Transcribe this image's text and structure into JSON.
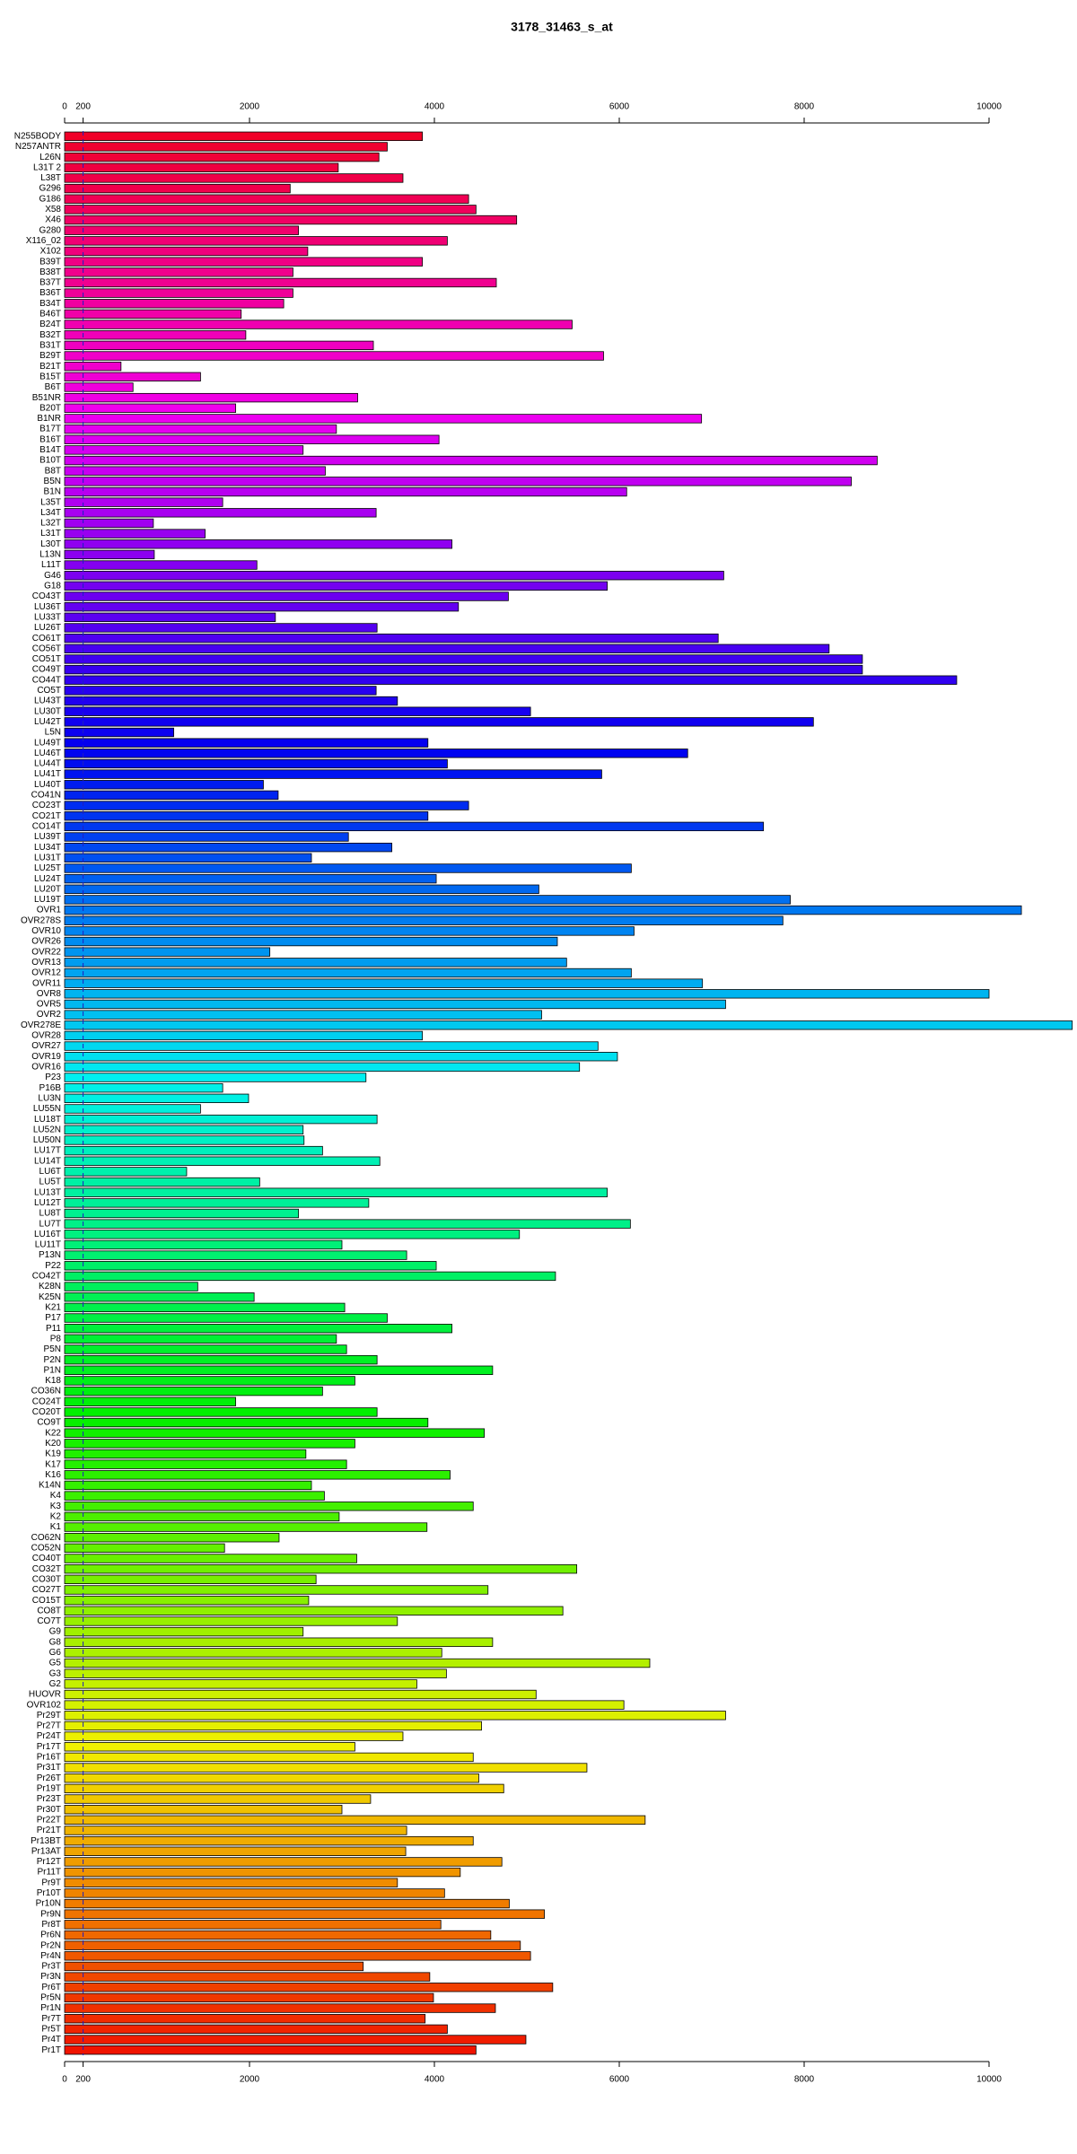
{
  "chart_data": {
    "type": "barh",
    "title": "3178_31463_s_at",
    "categories": [
      "N255BODY",
      "N257ANTR",
      "L26N",
      "L31T 2",
      "L38T",
      "G296",
      "G186",
      "X58",
      "X46",
      "G280",
      "X116_02",
      "X102",
      "B39T",
      "B38T",
      "B37T",
      "B36T",
      "B34T",
      "B46T",
      "B24T",
      "B32T",
      "B31T",
      "B29T",
      "B21T",
      "B15T",
      "B6T",
      "B51NR",
      "B20T",
      "B1NR",
      "B17T",
      "B16T",
      "B14T",
      "B10T",
      "B8T",
      "B5N",
      "B1N",
      "L35T",
      "L34T",
      "L32T",
      "L31T",
      "L30T",
      "L13N",
      "L11T",
      "G46",
      "G18",
      "CO43T",
      "LU36T",
      "LU33T",
      "LU26T",
      "CO61T",
      "CO56T",
      "CO51T",
      "CO49T",
      "CO44T",
      "CO5T",
      "LU43T",
      "LU30T",
      "LU42T",
      "L5N",
      "LU49T",
      "LU46T",
      "LU44T",
      "LU41T",
      "LU40T",
      "CO41N",
      "CO23T",
      "CO21T",
      "CO14T",
      "LU39T",
      "LU34T",
      "LU31T",
      "LU25T",
      "LU24T",
      "LU20T",
      "LU19T",
      "OVR1",
      "OVR278S",
      "OVR10",
      "OVR26",
      "OVR22",
      "OVR13",
      "OVR12",
      "OVR11",
      "OVR8",
      "OVR5",
      "OVR2",
      "OVR278E",
      "OVR28",
      "OVR27",
      "OVR19",
      "OVR16",
      "P23",
      "P16B",
      "LU3N",
      "LU55N",
      "LU18T",
      "LU52N",
      "LU50N",
      "LU17T",
      "LU14T",
      "LU6T",
      "LU5T",
      "LU13T",
      "LU12T",
      "LU8T",
      "LU7T",
      "LU16T",
      "LU11T",
      "P13N",
      "P22",
      "CO42T",
      "K28N",
      "K25N",
      "K21",
      "P17",
      "P11",
      "P8",
      "P5N",
      "P2N",
      "P1N",
      "K18",
      "CO36N",
      "CO24T",
      "CO20T",
      "CO9T",
      "K22",
      "K20",
      "K19",
      "K17",
      "K16",
      "K14N",
      "K4",
      "K3",
      "K2",
      "K1",
      "CO62N",
      "CO52N",
      "CO40T",
      "CO32T",
      "CO30T",
      "CO27T",
      "CO15T",
      "CO8T",
      "CO7T",
      "G9",
      "G8",
      "G6",
      "G5",
      "G3",
      "G2",
      "HUOVR",
      "OVR102",
      "Pr29T",
      "Pr27T",
      "Pr24T",
      "Pr17T",
      "Pr16T",
      "Pr31T",
      "Pr26T",
      "Pr19T",
      "Pr23T",
      "Pr30T",
      "Pr22T",
      "Pr21T",
      "Pr13BT",
      "Pr13AT",
      "Pr12T",
      "Pr11T",
      "Pr9T",
      "Pr10T",
      "Pr10N",
      "Pr9N",
      "Pr8T",
      "Pr6N",
      "Pr2N",
      "Pr4N",
      "Pr3T",
      "Pr3N",
      "Pr6T",
      "Pr5N",
      "Pr1N",
      "Pr7T",
      "Pr5T",
      "Pr4T",
      "Pr1T"
    ],
    "values": [
      3870,
      3490,
      3400,
      2960,
      3660,
      2440,
      4370,
      4450,
      4890,
      2530,
      4140,
      2630,
      3870,
      2470,
      4670,
      2470,
      2370,
      1910,
      5490,
      1960,
      3340,
      5830,
      610,
      1470,
      740,
      3170,
      1850,
      6890,
      2940,
      4050,
      2580,
      8790,
      2820,
      8510,
      6080,
      1710,
      3370,
      960,
      1520,
      4190,
      970,
      2080,
      7130,
      5870,
      4800,
      4260,
      2280,
      3380,
      7070,
      8270,
      8630,
      8630,
      9650,
      3370,
      3600,
      5040,
      8100,
      1180,
      3930,
      6740,
      4140,
      5810,
      2150,
      2310,
      4370,
      3930,
      7560,
      3070,
      3540,
      2670,
      6130,
      4020,
      5130,
      7850,
      10350,
      7770,
      6160,
      5330,
      2220,
      5430,
      6130,
      6900,
      10000,
      7150,
      5160,
      10900,
      3870,
      5770,
      5980,
      5570,
      3260,
      1710,
      1990,
      1470,
      3380,
      2580,
      2590,
      2790,
      3410,
      1320,
      2110,
      5870,
      3290,
      2530,
      6120,
      4920,
      3000,
      3700,
      4020,
      5310,
      1440,
      2050,
      3030,
      3490,
      4190,
      2940,
      3050,
      3380,
      4630,
      3140,
      2790,
      1850,
      3380,
      3930,
      4540,
      3140,
      2610,
      3050,
      4170,
      2670,
      2810,
      4420,
      2970,
      3920,
      2320,
      1730,
      3160,
      5540,
      2720,
      4580,
      2640,
      5390,
      3600,
      2580,
      4630,
      4080,
      6330,
      4130,
      3810,
      5100,
      6050,
      7150,
      4510,
      3660,
      3140,
      4420,
      5650,
      4480,
      4750,
      3310,
      3000,
      6280,
      3700,
      4420,
      3690,
      4730,
      4280,
      3600,
      4110,
      4810,
      5190,
      4070,
      4610,
      4930,
      5040,
      3230,
      3950,
      5280,
      3990,
      4660,
      3900,
      4140,
      4990,
      4450
    ],
    "colors_hue": [
      350,
      348,
      346,
      344,
      342,
      341,
      339,
      337,
      335,
      333,
      331,
      329,
      327,
      325,
      324,
      322,
      320,
      318,
      316,
      314,
      312,
      310,
      309,
      307,
      305,
      303,
      301,
      299,
      297,
      295,
      293,
      292,
      290,
      288,
      286,
      284,
      282,
      280,
      278,
      276,
      275,
      273,
      271,
      269,
      267,
      265,
      263,
      261,
      260,
      258,
      256,
      254,
      252,
      250,
      248,
      246,
      244,
      243,
      241,
      239,
      237,
      235,
      233,
      231,
      229,
      227,
      226,
      224,
      222,
      220,
      218,
      216,
      214,
      212,
      210,
      209,
      207,
      205,
      203,
      201,
      199,
      197,
      195,
      194,
      192,
      190,
      188,
      186,
      184,
      182,
      180,
      178,
      177,
      175,
      173,
      171,
      169,
      167,
      165,
      163,
      161,
      160,
      158,
      156,
      154,
      152,
      150,
      148,
      146,
      145,
      143,
      141,
      139,
      137,
      135,
      133,
      131,
      129,
      128,
      126,
      124,
      122,
      120,
      118,
      116,
      114,
      112,
      111,
      109,
      107,
      105,
      103,
      101,
      99,
      97,
      95,
      94,
      92,
      90,
      88,
      86,
      84,
      82,
      80,
      78,
      77,
      75,
      73,
      71,
      69,
      67,
      65,
      63,
      61,
      60,
      58,
      56,
      54,
      52,
      50,
      48,
      46,
      45,
      43,
      41,
      39,
      37,
      35,
      33,
      31,
      29,
      28,
      26,
      24,
      22,
      20,
      18,
      16,
      14,
      12,
      11,
      9,
      7,
      5
    ],
    "xlim": [
      0,
      10900
    ],
    "xticks": [
      0,
      200,
      2000,
      4000,
      6000,
      8000,
      10000
    ],
    "threshold": 200
  }
}
